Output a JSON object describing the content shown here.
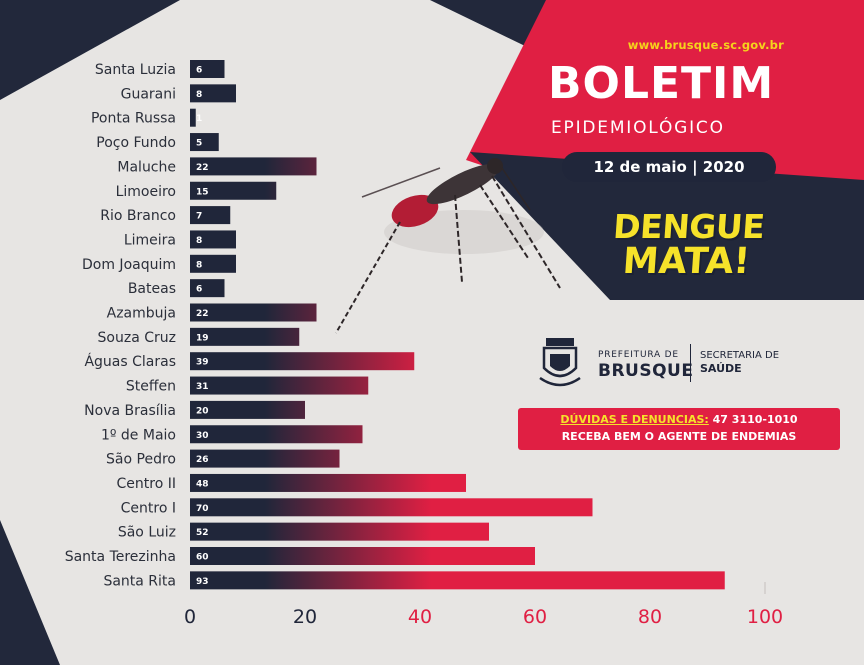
{
  "header": {
    "url": "www.brusque.sc.gov.br",
    "title": "BOLETIM",
    "subtitle": "EPIDEMIOLÓGICO",
    "date": "12 de maio | 2020"
  },
  "slogan": {
    "line1": "DENGUE",
    "line2": "MATA!"
  },
  "logo": {
    "prefeitura_small": "PREFEITURA DE",
    "prefeitura_big": "BRUSQUE",
    "secretaria_line1": "SECRETARIA DE",
    "secretaria_line2": "SAÚDE",
    "crest_icon": "city-coat-of-arms-icon"
  },
  "contact": {
    "question": "DÚVIDAS E DENUNCIAS:",
    "phone": "47 3110-1010",
    "message": "RECEBA BEM O AGENTE DE ENDEMIAS"
  },
  "colors": {
    "navy": "#20263a",
    "red": "#e01f43",
    "yellow": "#f6e22a",
    "background": "#e7e5e3"
  },
  "decoration": {
    "mosquito_icon": "mosquito-icon"
  },
  "chart_data": {
    "type": "bar",
    "orientation": "horizontal",
    "categories": [
      "Santa Luzia",
      "Guarani",
      "Ponta Russa",
      "Poço Fundo",
      "Maluche",
      "Limoeiro",
      "Rio Branco",
      "Limeira",
      "Dom Joaquim",
      "Bateas",
      "Azambuja",
      "Souza Cruz",
      "Águas Claras",
      "Steffen",
      "Nova Brasília",
      "1º de Maio",
      "São Pedro",
      "Centro II",
      "Centro I",
      "São Luiz",
      "Santa Terezinha",
      "Santa Rita"
    ],
    "values": [
      6,
      8,
      1,
      5,
      22,
      15,
      7,
      8,
      8,
      6,
      22,
      19,
      39,
      31,
      20,
      30,
      26,
      48,
      70,
      52,
      60,
      93
    ],
    "xlim": [
      0,
      100
    ],
    "xticks": [
      0,
      20,
      40,
      60,
      80,
      100
    ],
    "title": "",
    "xlabel": "",
    "ylabel": "",
    "grid": false
  }
}
